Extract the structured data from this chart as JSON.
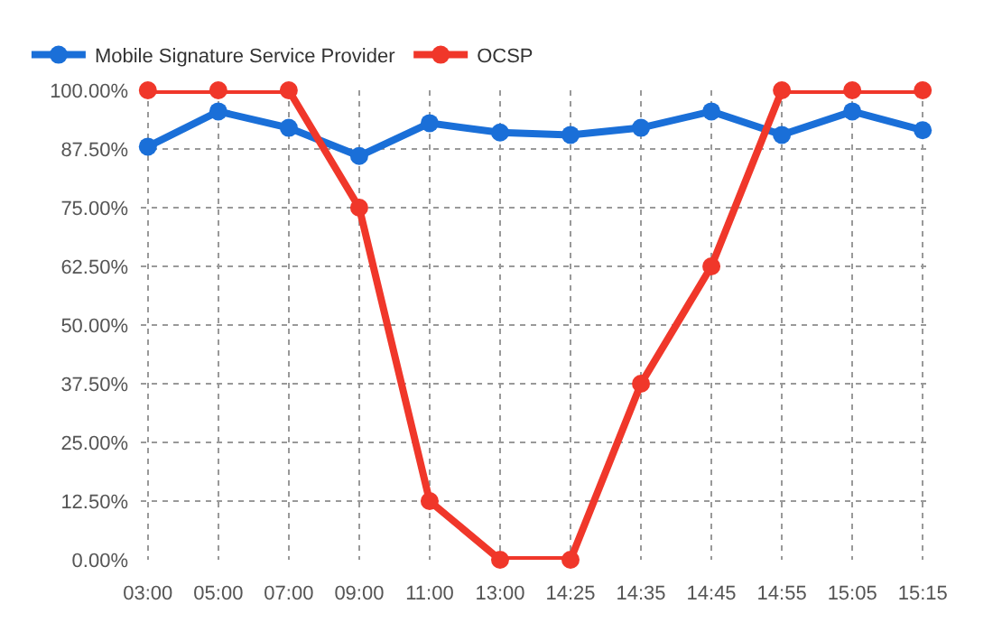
{
  "chart_data": {
    "type": "line",
    "categories": [
      "03:00",
      "05:00",
      "07:00",
      "09:00",
      "11:00",
      "13:00",
      "14:25",
      "14:35",
      "14:45",
      "14:55",
      "15:05",
      "15:15"
    ],
    "series": [
      {
        "name": "Mobile Signature Service Provider",
        "color": "#1a6fd8",
        "values": [
          88,
          95.5,
          92,
          86,
          93,
          91,
          90.5,
          92,
          95.5,
          90.5,
          95.5,
          91.5
        ]
      },
      {
        "name": "OCSP",
        "color": "#f0372a",
        "values": [
          100,
          100,
          100,
          75,
          12.5,
          0,
          0,
          37.5,
          62.5,
          100,
          100,
          100
        ]
      }
    ],
    "ylim": [
      0,
      100
    ],
    "yticks": [
      {
        "value": 0,
        "label": "0.00%"
      },
      {
        "value": 12.5,
        "label": "12.50%"
      },
      {
        "value": 25,
        "label": "25.00%"
      },
      {
        "value": 37.5,
        "label": "37.50%"
      },
      {
        "value": 50,
        "label": "50.00%"
      },
      {
        "value": 62.5,
        "label": "62.50%"
      },
      {
        "value": 75,
        "label": "75.00%"
      },
      {
        "value": 87.5,
        "label": "87.50%"
      },
      {
        "value": 100,
        "label": "100.00%"
      }
    ],
    "grid": true,
    "legend": "top left",
    "marker": "circle",
    "line_style": "solid"
  }
}
